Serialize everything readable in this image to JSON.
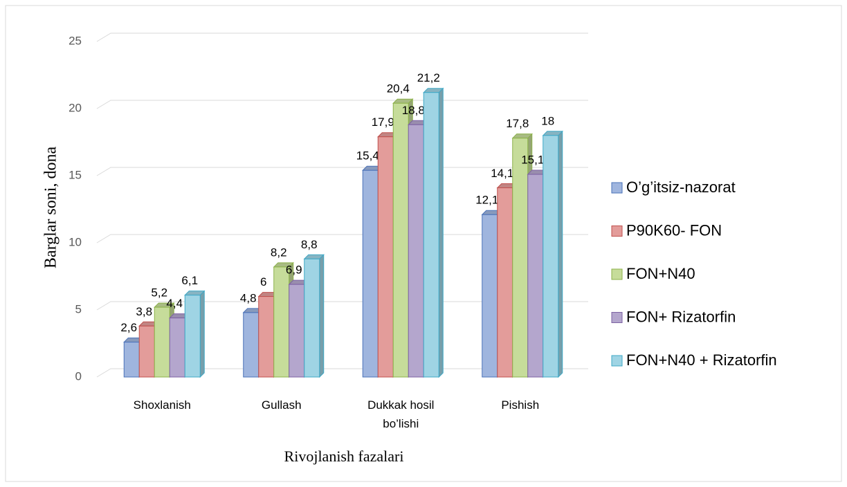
{
  "chart_data": {
    "type": "bar3d",
    "y_label": "Barglar soni, dona",
    "x_label": "Rivojlanish fazalari",
    "categories": [
      "Shoxlanish",
      "Gullash",
      "Dukkak hosil bo’lishi",
      "Pishish"
    ],
    "series": [
      {
        "name": "O’g’itsiz-nazorat",
        "color": "#9fb5de",
        "values": [
          2.6,
          4.8,
          15.4,
          12.1
        ],
        "value_labels": [
          "2,6",
          "4,8",
          "15,4",
          "12,1"
        ]
      },
      {
        "name": "P90K60- FON",
        "color": "#e39c9a",
        "values": [
          3.8,
          6,
          17.9,
          14.1
        ],
        "value_labels": [
          "3,8",
          "6",
          "17,9",
          "14,1"
        ]
      },
      {
        "name": "FON+N40",
        "color": "#c6dc9a",
        "values": [
          5.2,
          8.2,
          20.4,
          17.8
        ],
        "value_labels": [
          "5,2",
          "8,2",
          "20,4",
          "17,8"
        ]
      },
      {
        "name": "FON+ Rizatorfin",
        "color": "#b4a6cd",
        "values": [
          4.4,
          6.9,
          18.8,
          15.1
        ],
        "value_labels": [
          "4,4",
          "6,9",
          "18,8",
          "15,1"
        ]
      },
      {
        "name": "FON+N40 + Rizatorfin",
        "color": "#9fd4e4",
        "values": [
          6.1,
          8.8,
          21.2,
          18
        ],
        "value_labels": [
          "6,1",
          "8,8",
          "21,2",
          "18"
        ]
      }
    ],
    "ylim": [
      0,
      25
    ],
    "yticks": [
      0,
      5,
      10,
      15,
      20,
      25
    ],
    "grid": true,
    "legend": "right"
  }
}
